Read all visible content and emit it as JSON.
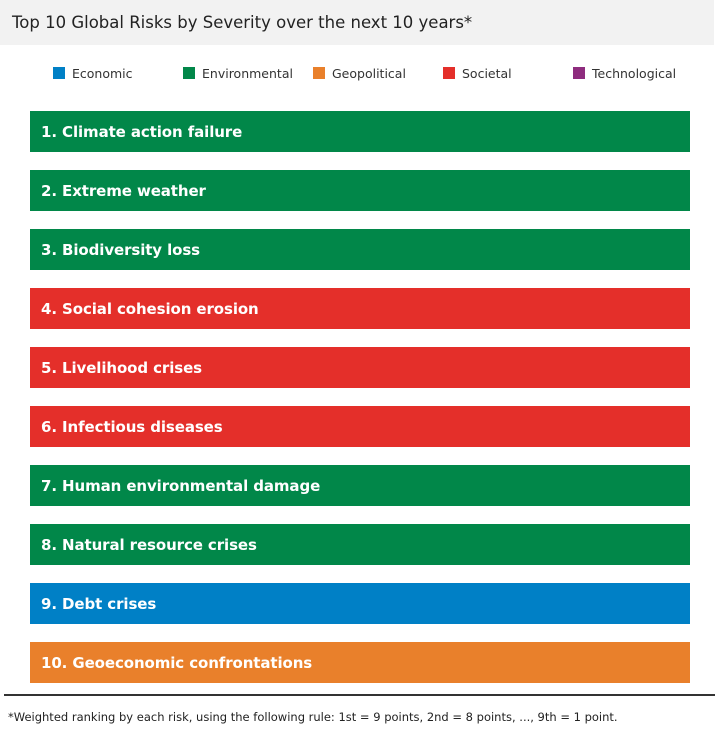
{
  "chart_data": {
    "type": "table",
    "title": "Top 10 Global Risks by Severity over the next 10 years*",
    "legend": {
      "placement": "top",
      "entries": [
        {
          "name": "Economic",
          "color": "#0080c6"
        },
        {
          "name": "Environmental",
          "color": "#018749"
        },
        {
          "name": "Geopolitical",
          "color": "#e9802b"
        },
        {
          "name": "Societal",
          "color": "#e42f2a"
        },
        {
          "name": "Technological",
          "color": "#8e2c7e"
        }
      ]
    },
    "rows": [
      {
        "rank": 1,
        "label": "1.  Climate action failure",
        "category": "Environmental"
      },
      {
        "rank": 2,
        "label": "2.  Extreme weather",
        "category": "Environmental"
      },
      {
        "rank": 3,
        "label": "3.  Biodiversity loss",
        "category": "Environmental"
      },
      {
        "rank": 4,
        "label": "4.  Social cohesion erosion",
        "category": "Societal"
      },
      {
        "rank": 5,
        "label": "5.  Livelihood crises",
        "category": "Societal"
      },
      {
        "rank": 6,
        "label": "6.  Infectious diseases",
        "category": "Societal"
      },
      {
        "rank": 7,
        "label": "7.  Human environmental damage",
        "category": "Environmental"
      },
      {
        "rank": 8,
        "label": "8.  Natural resource crises",
        "category": "Environmental"
      },
      {
        "rank": 9,
        "label": "9.  Debt crises",
        "category": "Economic"
      },
      {
        "rank": 10,
        "label": "10.  Geoeconomic confrontations",
        "category": "Geopolitical"
      }
    ],
    "footnote": "*Weighted ranking by each risk, using the following rule: 1st = 9 points, 2nd = 8 points, ..., 9th = 1 point."
  }
}
